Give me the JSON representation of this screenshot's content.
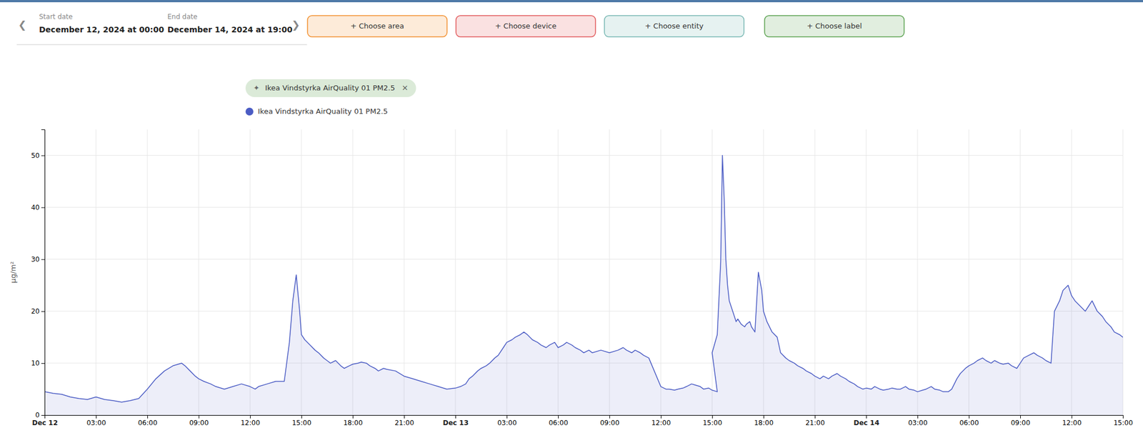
{
  "chart_data": {
    "type": "line",
    "title": "Ikea Vindstyrka AirQuality 01 PM2.5",
    "ylabel": "µg/m²",
    "annotations": [
      "❮",
      "❯",
      "Start date",
      "December 12, 2024 at 00:00",
      "End date",
      "December 14, 2024 at 19:00",
      "+ Choose area",
      "+ Choose device",
      "+ Choose entity",
      "+ Choose label",
      "✦",
      "×"
    ],
    "legend": "top",
    "grid": true,
    "xlim": [
      0,
      63
    ],
    "xticks": [
      {
        "value": 0,
        "label": "Dec 12"
      },
      {
        "value": 3,
        "label": "03:00"
      },
      {
        "value": 6,
        "label": "06:00"
      },
      {
        "value": 9,
        "label": "09:00"
      },
      {
        "value": 12,
        "label": "12:00"
      },
      {
        "value": 15,
        "label": "15:00"
      },
      {
        "value": 18,
        "label": "18:00"
      },
      {
        "value": 21,
        "label": "21:00"
      },
      {
        "value": 24,
        "label": "Dec 13"
      },
      {
        "value": 27,
        "label": "03:00"
      },
      {
        "value": 30,
        "label": "06:00"
      },
      {
        "value": 33,
        "label": "09:00"
      },
      {
        "value": 36,
        "label": "12:00"
      },
      {
        "value": 39,
        "label": "15:00"
      },
      {
        "value": 42,
        "label": "18:00"
      },
      {
        "value": 45,
        "label": "21:00"
      },
      {
        "value": 48,
        "label": "Dec 14"
      },
      {
        "value": 51,
        "label": "03:00"
      },
      {
        "value": 54,
        "label": "06:00"
      },
      {
        "value": 57,
        "label": "09:00"
      },
      {
        "value": 60,
        "label": "12:00"
      },
      {
        "value": 63,
        "label": "15:00"
      }
    ],
    "ylim": [
      0,
      55
    ],
    "yticks": [
      0,
      10,
      20,
      30,
      40,
      50
    ],
    "x": [
      0,
      0.5,
      1,
      1.5,
      2,
      2.5,
      3,
      3.5,
      4,
      4.5,
      5,
      5.5,
      6,
      6.5,
      7,
      7.5,
      8,
      8.2,
      8.5,
      8.8,
      9,
      9.3,
      9.7,
      10,
      10.5,
      11,
      11.5,
      12,
      12.3,
      12.5,
      13,
      13.5,
      14,
      14.3,
      14.5,
      14.7,
      14.9,
      15,
      15.2,
      15.5,
      15.8,
      16,
      16.3,
      16.5,
      16.7,
      17,
      17.3,
      17.5,
      17.8,
      18,
      18.3,
      18.5,
      18.8,
      19,
      19.3,
      19.5,
      19.8,
      20,
      20.5,
      21,
      21.5,
      22,
      22.5,
      23,
      23.5,
      24,
      24.3,
      24.6,
      24.8,
      25,
      25.3,
      25.5,
      25.8,
      26,
      26.3,
      26.5,
      26.8,
      27,
      27.3,
      27.5,
      27.8,
      28,
      28.2,
      28.5,
      28.8,
      29,
      29.3,
      29.5,
      29.8,
      30,
      30.3,
      30.5,
      30.8,
      31,
      31.3,
      31.5,
      31.8,
      32,
      32.5,
      33,
      33.5,
      33.8,
      34,
      34.3,
      34.5,
      34.8,
      35,
      35.3,
      36,
      36.3,
      36.5,
      36.8,
      37,
      37.3,
      37.5,
      37.8,
      38,
      38.3,
      38.5,
      38.8,
      39,
      39.3,
      39,
      39.3,
      39.5,
      39.6,
      39.7,
      39.8,
      39.9,
      40,
      40.2,
      40.4,
      40.5,
      40.7,
      40.9,
      41,
      41.2,
      41.3,
      41.5,
      41.7,
      41.9,
      42,
      42.2,
      42.5,
      42.8,
      43,
      43.3,
      43.5,
      43.8,
      44,
      44.3,
      44.5,
      44.8,
      45,
      45.3,
      45.5,
      45.8,
      46,
      46.3,
      46.5,
      46.8,
      47,
      47.3,
      47.5,
      47.8,
      48,
      48.3,
      48.5,
      48.8,
      49,
      49.3,
      49.5,
      49.8,
      50,
      50.3,
      50.5,
      50.8,
      51,
      51.3,
      51.5,
      51.8,
      52,
      52.3,
      52.5,
      52.8,
      53,
      53.3,
      53.5,
      53.8,
      54,
      54.3,
      54.5,
      54.8,
      55,
      55.3,
      55.5,
      55.8,
      56,
      56.3,
      56.5,
      56.8,
      57,
      57.2,
      57.5,
      57.8,
      58,
      58.3,
      58.5,
      58.8,
      59,
      59.3,
      59.5,
      59.8,
      60,
      60.2,
      60.5,
      60.8,
      61,
      61.2,
      61.5,
      61.8,
      62,
      62.3,
      62.5,
      62.8,
      63
    ],
    "series": [
      {
        "name": "Ikea Vindstyrka AirQuality 01 PM2.5",
        "color": "#4B5CC4",
        "values": [
          4.5,
          4.2,
          4.0,
          3.5,
          3.2,
          3.0,
          3.5,
          3.0,
          2.8,
          2.5,
          2.8,
          3.2,
          5.0,
          7.0,
          8.5,
          9.5,
          10.0,
          9.5,
          8.5,
          7.5,
          7.0,
          6.5,
          6.0,
          5.5,
          5.0,
          5.5,
          6.0,
          5.5,
          5.0,
          5.5,
          6.0,
          6.5,
          6.5,
          14.0,
          22.0,
          27.0,
          20.0,
          15.5,
          14.5,
          13.5,
          12.5,
          12.0,
          11.0,
          10.5,
          10.0,
          10.5,
          9.5,
          9.0,
          9.5,
          9.8,
          10.0,
          10.2,
          10.0,
          9.5,
          9.0,
          8.5,
          9.0,
          8.8,
          8.5,
          7.5,
          7.0,
          6.5,
          6.0,
          5.5,
          5.0,
          5.2,
          5.5,
          6.0,
          7.0,
          7.5,
          8.5,
          9.0,
          9.5,
          10.0,
          11.0,
          11.5,
          13.0,
          14.0,
          14.5,
          15.0,
          15.5,
          16.0,
          15.5,
          14.5,
          14.0,
          13.5,
          13.0,
          13.5,
          14.0,
          13.0,
          13.5,
          14.0,
          13.5,
          13.0,
          12.5,
          12.0,
          12.5,
          12.0,
          12.5,
          12.0,
          12.5,
          13.0,
          12.5,
          12.0,
          12.5,
          12.0,
          11.5,
          11.0,
          5.5,
          5.0,
          5.0,
          4.8,
          5.0,
          5.2,
          5.5,
          6.0,
          5.8,
          5.5,
          5.0,
          5.2,
          4.8,
          4.5,
          12.0,
          15.5,
          29.5,
          50.0,
          42.0,
          30.0,
          25.0,
          22.0,
          20.0,
          18.0,
          18.5,
          17.5,
          17.0,
          17.5,
          18.0,
          17.0,
          16.0,
          27.5,
          24.0,
          20.0,
          18.0,
          16.0,
          15.0,
          12.0,
          11.0,
          10.5,
          10.0,
          9.5,
          9.0,
          8.5,
          8.0,
          7.5,
          7.0,
          7.5,
          7.0,
          7.5,
          8.0,
          7.5,
          7.0,
          6.5,
          6.0,
          5.5,
          5.0,
          5.2,
          5.0,
          5.5,
          5.0,
          4.8,
          5.0,
          5.2,
          5.0,
          5.0,
          5.5,
          5.0,
          4.8,
          4.5,
          4.8,
          5.0,
          5.5,
          5.0,
          4.8,
          4.5,
          4.5,
          5.0,
          7.0,
          8.0,
          9.0,
          9.5,
          10.0,
          10.5,
          11.0,
          10.5,
          10.0,
          10.5,
          10.0,
          9.8,
          10.0,
          9.5,
          9.0,
          10.0,
          11.0,
          11.5,
          12.0,
          11.5,
          11.0,
          10.5,
          10.0,
          20.0,
          22.0,
          24.0,
          25.0,
          23.0,
          22.0,
          21.0,
          20.0,
          21.0,
          22.0,
          20.0,
          19.0,
          18.0,
          17.0,
          16.0,
          15.5,
          15.0
        ]
      }
    ]
  }
}
